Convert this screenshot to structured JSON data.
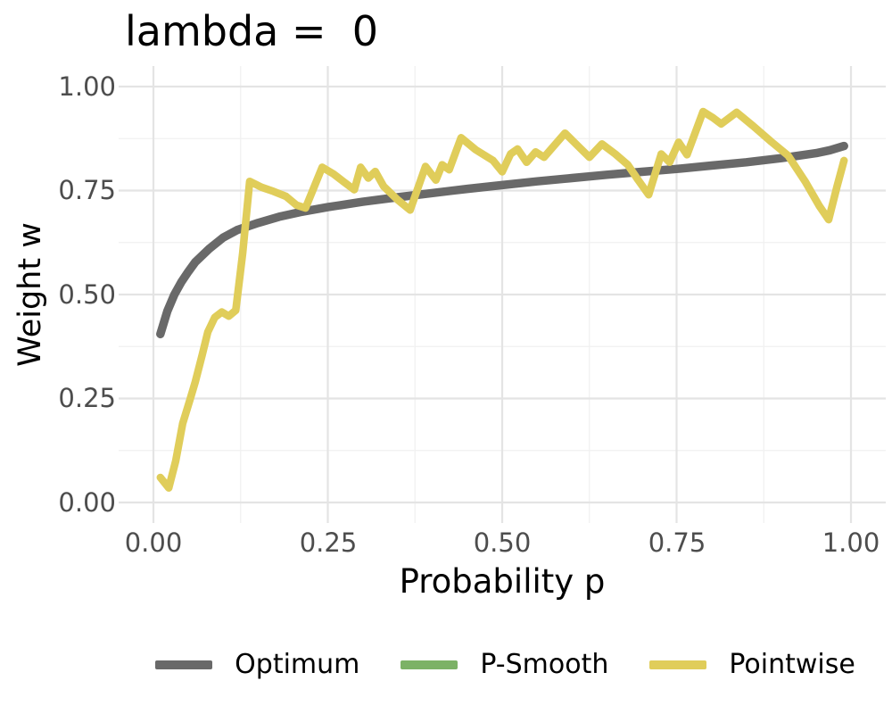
{
  "title": "lambda =  0",
  "axes": {
    "x": {
      "label": "Probability p",
      "ticks": [
        "0.00",
        "0.25",
        "0.50",
        "0.75",
        "1.00"
      ],
      "tick_values": [
        0,
        0.25,
        0.5,
        0.75,
        1
      ]
    },
    "y": {
      "label": "Weight w",
      "ticks": [
        "0.00",
        "0.25",
        "0.50",
        "0.75",
        "1.00"
      ],
      "tick_values": [
        0,
        0.25,
        0.5,
        0.75,
        1
      ]
    }
  },
  "legend": {
    "items": [
      {
        "label": "Optimum",
        "color": "#696969"
      },
      {
        "label": "P-Smooth",
        "color": "#7cb266"
      },
      {
        "label": "Pointwise",
        "color": "#e0cd5a"
      }
    ]
  },
  "colors": {
    "optimum": "#696969",
    "psmooth": "#7cb266",
    "pointwise": "#e0cd5a",
    "grid_major": "#e4e4e4",
    "grid_minor": "#f1f1f1",
    "tick_text": "#4d4d4d",
    "title_text": "#000000",
    "background": "#ffffff"
  },
  "chart_data": {
    "type": "line",
    "title": "lambda =  0",
    "xlabel": "Probability p",
    "ylabel": "Weight w",
    "xlim": [
      0,
      1
    ],
    "ylim": [
      0,
      1
    ],
    "grid": true,
    "legend_position": "bottom",
    "note": "Green P-Smooth curve is not visible in the plot area; it coincides with the Optimum curve and is hidden beneath it.",
    "series": [
      {
        "name": "Optimum",
        "color": "#696969",
        "x": [
          0.01,
          0.02,
          0.03,
          0.04,
          0.05,
          0.06,
          0.08,
          0.1,
          0.12,
          0.15,
          0.18,
          0.21,
          0.25,
          0.3,
          0.35,
          0.4,
          0.45,
          0.5,
          0.55,
          0.6,
          0.65,
          0.7,
          0.75,
          0.8,
          0.85,
          0.9,
          0.95,
          0.97,
          0.99
        ],
        "y": [
          0.405,
          0.46,
          0.5,
          0.53,
          0.555,
          0.578,
          0.61,
          0.637,
          0.655,
          0.672,
          0.687,
          0.698,
          0.71,
          0.723,
          0.734,
          0.744,
          0.754,
          0.763,
          0.772,
          0.78,
          0.788,
          0.795,
          0.802,
          0.81,
          0.818,
          0.828,
          0.84,
          0.847,
          0.857
        ]
      },
      {
        "name": "P-Smooth",
        "color": "#7cb266",
        "x": [
          0.01,
          0.02,
          0.03,
          0.04,
          0.05,
          0.06,
          0.08,
          0.1,
          0.12,
          0.15,
          0.18,
          0.21,
          0.25,
          0.3,
          0.35,
          0.4,
          0.45,
          0.5,
          0.55,
          0.6,
          0.65,
          0.7,
          0.75,
          0.8,
          0.85,
          0.9,
          0.95,
          0.97,
          0.99
        ],
        "y": [
          0.405,
          0.46,
          0.5,
          0.53,
          0.555,
          0.578,
          0.61,
          0.637,
          0.655,
          0.672,
          0.687,
          0.698,
          0.71,
          0.723,
          0.734,
          0.744,
          0.754,
          0.763,
          0.772,
          0.78,
          0.788,
          0.795,
          0.802,
          0.81,
          0.818,
          0.828,
          0.84,
          0.847,
          0.857
        ]
      },
      {
        "name": "Pointwise",
        "color": "#e0cd5a",
        "x": [
          0.01,
          0.022,
          0.032,
          0.042,
          0.052,
          0.06,
          0.07,
          0.078,
          0.088,
          0.098,
          0.108,
          0.118,
          0.128,
          0.138,
          0.155,
          0.172,
          0.19,
          0.205,
          0.218,
          0.242,
          0.258,
          0.272,
          0.288,
          0.297,
          0.308,
          0.318,
          0.33,
          0.35,
          0.368,
          0.39,
          0.405,
          0.414,
          0.424,
          0.441,
          0.462,
          0.487,
          0.5,
          0.512,
          0.522,
          0.535,
          0.548,
          0.56,
          0.59,
          0.61,
          0.625,
          0.643,
          0.662,
          0.68,
          0.695,
          0.71,
          0.728,
          0.74,
          0.753,
          0.765,
          0.788,
          0.802,
          0.814,
          0.836,
          0.86,
          0.886,
          0.91,
          0.935,
          0.955,
          0.968,
          0.98,
          0.99
        ],
        "y": [
          0.06,
          0.035,
          0.1,
          0.19,
          0.245,
          0.29,
          0.355,
          0.41,
          0.445,
          0.458,
          0.448,
          0.462,
          0.6,
          0.772,
          0.758,
          0.748,
          0.736,
          0.715,
          0.708,
          0.806,
          0.79,
          0.772,
          0.752,
          0.806,
          0.78,
          0.796,
          0.76,
          0.728,
          0.703,
          0.808,
          0.775,
          0.812,
          0.8,
          0.877,
          0.848,
          0.822,
          0.795,
          0.838,
          0.85,
          0.818,
          0.843,
          0.83,
          0.888,
          0.855,
          0.83,
          0.862,
          0.838,
          0.812,
          0.775,
          0.74,
          0.838,
          0.818,
          0.866,
          0.836,
          0.94,
          0.925,
          0.91,
          0.938,
          0.905,
          0.867,
          0.834,
          0.77,
          0.712,
          0.68,
          0.76,
          0.822
        ]
      }
    ]
  }
}
